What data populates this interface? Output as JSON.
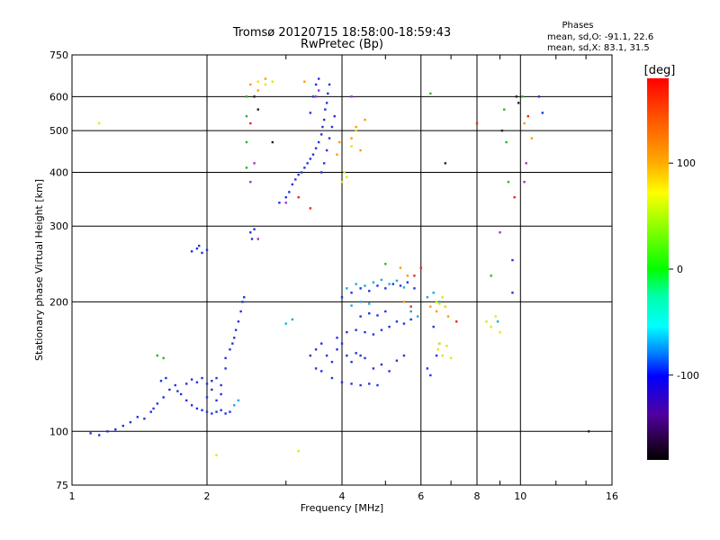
{
  "chart_data": {
    "type": "scatter",
    "title": "Tromsø 20120715 18:58:00-18:59:43",
    "subtitle": "RwPretec (Bp)",
    "xlabel": "Frequency [MHz]",
    "ylabel": "Stationary phase Virtual Height [km]",
    "xscale": "log",
    "yscale": "log",
    "xlim": [
      1,
      16
    ],
    "ylim": [
      75,
      750
    ],
    "xticks": [
      1,
      2,
      4,
      6,
      8,
      10,
      16
    ],
    "xtick_labels": [
      "1",
      "2",
      "4",
      "6",
      "8",
      "10",
      "16"
    ],
    "yticks": [
      75,
      100,
      200,
      300,
      400,
      500,
      600,
      750
    ],
    "ytick_labels": [
      "75",
      "100",
      "200",
      "300",
      "400",
      "500",
      "600",
      "750"
    ],
    "grid": true,
    "phases_box": {
      "heading": "Phases",
      "line1": "mean, sd,O: -91.1, 22.6",
      "line2": "mean, sd,X:  83.1, 31.5"
    },
    "colorbar": {
      "label": "[deg]",
      "ticks": [
        100,
        0,
        -100
      ],
      "tick_labels": [
        "100",
        "0",
        "-100"
      ],
      "range": [
        -180,
        180
      ]
    },
    "series": [
      {
        "color": "#2233dd",
        "points": [
          [
            1.1,
            99
          ],
          [
            1.15,
            98
          ],
          [
            1.2,
            100
          ],
          [
            1.25,
            101
          ],
          [
            1.3,
            103
          ],
          [
            1.35,
            105
          ],
          [
            1.4,
            108
          ],
          [
            1.45,
            107
          ],
          [
            1.5,
            111
          ],
          [
            1.52,
            113
          ],
          [
            1.55,
            116
          ],
          [
            1.6,
            120
          ],
          [
            1.58,
            131
          ],
          [
            1.62,
            133
          ],
          [
            1.65,
            125
          ],
          [
            1.7,
            128
          ],
          [
            1.72,
            124
          ],
          [
            1.75,
            122
          ],
          [
            1.8,
            118
          ],
          [
            1.85,
            115
          ],
          [
            1.9,
            113
          ],
          [
            1.95,
            112
          ],
          [
            2.0,
            111
          ],
          [
            2.05,
            110
          ],
          [
            2.1,
            111
          ],
          [
            2.15,
            112
          ],
          [
            2.2,
            110
          ],
          [
            2.25,
            111
          ],
          [
            1.8,
            129
          ],
          [
            1.85,
            132
          ],
          [
            1.9,
            130
          ],
          [
            1.95,
            133
          ],
          [
            2.0,
            129
          ],
          [
            2.05,
            131
          ],
          [
            2.1,
            133
          ],
          [
            2.15,
            128
          ],
          [
            2.0,
            120
          ],
          [
            2.05,
            125
          ],
          [
            2.1,
            118
          ],
          [
            2.15,
            122
          ],
          [
            2.2,
            140
          ],
          [
            2.2,
            148
          ],
          [
            2.25,
            155
          ],
          [
            2.28,
            160
          ],
          [
            2.3,
            165
          ],
          [
            2.32,
            172
          ],
          [
            2.35,
            180
          ],
          [
            2.38,
            190
          ],
          [
            2.4,
            200
          ],
          [
            2.42,
            205
          ],
          [
            1.85,
            262
          ],
          [
            1.9,
            266
          ],
          [
            1.95,
            260
          ],
          [
            2.0,
            264
          ],
          [
            1.92,
            270
          ],
          [
            2.5,
            290
          ],
          [
            2.52,
            280
          ],
          [
            2.55,
            295
          ],
          [
            2.9,
            340
          ],
          [
            3.0,
            350
          ],
          [
            3.05,
            360
          ],
          [
            3.1,
            375
          ],
          [
            3.15,
            385
          ],
          [
            3.2,
            395
          ],
          [
            3.25,
            400
          ],
          [
            3.3,
            410
          ],
          [
            3.35,
            420
          ],
          [
            3.4,
            430
          ],
          [
            3.45,
            440
          ],
          [
            3.5,
            455
          ],
          [
            3.55,
            470
          ],
          [
            3.6,
            490
          ],
          [
            3.62,
            510
          ],
          [
            3.65,
            530
          ],
          [
            3.67,
            560
          ],
          [
            3.7,
            580
          ],
          [
            3.72,
            610
          ],
          [
            3.75,
            640
          ],
          [
            3.6,
            400
          ],
          [
            3.65,
            420
          ],
          [
            3.7,
            450
          ],
          [
            3.75,
            480
          ],
          [
            3.8,
            510
          ],
          [
            3.85,
            540
          ],
          [
            3.4,
            550
          ],
          [
            3.45,
            600
          ],
          [
            3.5,
            640
          ],
          [
            3.55,
            660
          ],
          [
            3.4,
            150
          ],
          [
            3.5,
            155
          ],
          [
            3.6,
            160
          ],
          [
            3.7,
            150
          ],
          [
            3.8,
            145
          ],
          [
            3.9,
            155
          ],
          [
            4.0,
            160
          ],
          [
            4.1,
            150
          ],
          [
            4.2,
            145
          ],
          [
            4.3,
            152
          ],
          [
            4.4,
            150
          ],
          [
            4.5,
            148
          ],
          [
            3.5,
            140
          ],
          [
            3.6,
            138
          ],
          [
            3.8,
            133
          ],
          [
            4.0,
            130
          ],
          [
            4.2,
            129
          ],
          [
            4.4,
            128
          ],
          [
            4.6,
            129
          ],
          [
            4.8,
            128
          ],
          [
            3.9,
            165
          ],
          [
            4.1,
            170
          ],
          [
            4.3,
            172
          ],
          [
            4.5,
            170
          ],
          [
            4.7,
            168
          ],
          [
            4.9,
            172
          ],
          [
            5.1,
            175
          ],
          [
            5.3,
            180
          ],
          [
            5.5,
            178
          ],
          [
            5.7,
            182
          ],
          [
            4.4,
            185
          ],
          [
            4.6,
            188
          ],
          [
            4.8,
            186
          ],
          [
            5.0,
            190
          ],
          [
            4.0,
            205
          ],
          [
            4.2,
            210
          ],
          [
            4.4,
            215
          ],
          [
            4.6,
            212
          ],
          [
            4.8,
            218
          ],
          [
            5.0,
            215
          ],
          [
            5.2,
            220
          ],
          [
            5.4,
            218
          ],
          [
            5.6,
            222
          ],
          [
            5.8,
            215
          ],
          [
            4.7,
            140
          ],
          [
            4.9,
            143
          ],
          [
            5.1,
            138
          ],
          [
            5.3,
            146
          ],
          [
            5.5,
            150
          ],
          [
            6.5,
            150
          ],
          [
            6.6,
            160
          ],
          [
            6.4,
            175
          ],
          [
            6.2,
            140
          ],
          [
            6.3,
            135
          ],
          [
            9.6,
            250
          ],
          [
            9.6,
            210
          ],
          [
            11.0,
            600
          ],
          [
            11.2,
            550
          ]
        ]
      },
      {
        "color": "#1ea7d6",
        "points": [
          [
            4.1,
            215
          ],
          [
            4.3,
            220
          ],
          [
            4.5,
            218
          ],
          [
            4.7,
            222
          ],
          [
            4.9,
            225
          ],
          [
            5.1,
            220
          ],
          [
            5.3,
            224
          ],
          [
            5.5,
            216
          ],
          [
            4.2,
            196
          ],
          [
            4.4,
            200
          ],
          [
            4.6,
            198
          ],
          [
            6.2,
            205
          ],
          [
            6.4,
            210
          ],
          [
            6.6,
            200
          ],
          [
            6.8,
            195
          ],
          [
            2.3,
            115
          ],
          [
            2.35,
            118
          ],
          [
            3.0,
            178
          ],
          [
            3.1,
            182
          ],
          [
            5.7,
            190
          ],
          [
            5.9,
            185
          ],
          [
            8.9,
            180
          ]
        ]
      },
      {
        "color": "#22bb22",
        "points": [
          [
            2.45,
            600
          ],
          [
            2.45,
            540
          ],
          [
            2.45,
            470
          ],
          [
            2.45,
            410
          ],
          [
            6.3,
            610
          ],
          [
            9.2,
            560
          ],
          [
            9.3,
            470
          ],
          [
            9.4,
            380
          ],
          [
            8.6,
            230
          ],
          [
            1.55,
            150
          ],
          [
            1.6,
            148
          ],
          [
            5.0,
            245
          ],
          [
            10.1,
            600
          ]
        ]
      },
      {
        "color": "#e6e600",
        "points": [
          [
            6.5,
            200
          ],
          [
            6.6,
            198
          ],
          [
            6.7,
            205
          ],
          [
            6.8,
            195
          ],
          [
            6.55,
            155
          ],
          [
            6.7,
            150
          ],
          [
            6.85,
            158
          ],
          [
            7.0,
            148
          ],
          [
            6.6,
            160
          ],
          [
            4.0,
            380
          ],
          [
            4.05,
            400
          ],
          [
            4.1,
            390
          ],
          [
            4.2,
            460
          ],
          [
            4.3,
            500
          ],
          [
            8.4,
            180
          ],
          [
            8.6,
            175
          ],
          [
            8.8,
            185
          ],
          [
            9.0,
            170
          ],
          [
            2.6,
            650
          ],
          [
            2.7,
            640
          ],
          [
            2.8,
            650
          ],
          [
            1.15,
            520
          ],
          [
            2.1,
            88
          ],
          [
            3.2,
            90
          ]
        ]
      },
      {
        "color": "#ff9900",
        "points": [
          [
            4.2,
            480
          ],
          [
            4.3,
            510
          ],
          [
            4.4,
            450
          ],
          [
            4.5,
            530
          ],
          [
            3.9,
            440
          ],
          [
            3.95,
            470
          ],
          [
            6.3,
            195
          ],
          [
            6.5,
            190
          ],
          [
            6.9,
            185
          ],
          [
            5.4,
            240
          ],
          [
            5.6,
            230
          ],
          [
            2.5,
            640
          ],
          [
            2.6,
            620
          ],
          [
            2.7,
            660
          ],
          [
            3.3,
            650
          ],
          [
            5.5,
            200
          ],
          [
            10.2,
            520
          ],
          [
            10.6,
            480
          ]
        ]
      },
      {
        "color": "#ee2222",
        "points": [
          [
            5.7,
            195
          ],
          [
            5.8,
            230
          ],
          [
            6.0,
            240
          ],
          [
            2.5,
            520
          ],
          [
            3.2,
            350
          ],
          [
            3.4,
            330
          ],
          [
            7.2,
            180
          ],
          [
            8.0,
            520
          ],
          [
            10.4,
            540
          ],
          [
            9.7,
            350
          ]
        ]
      },
      {
        "color": "#9933cc",
        "points": [
          [
            3.5,
            600
          ],
          [
            3.55,
            620
          ],
          [
            3.0,
            340
          ],
          [
            2.5,
            380
          ],
          [
            2.55,
            420
          ],
          [
            9.0,
            290
          ],
          [
            10.2,
            380
          ],
          [
            10.3,
            420
          ],
          [
            2.6,
            280
          ],
          [
            4.2,
            600
          ]
        ]
      },
      {
        "color": "#222222",
        "points": [
          [
            2.55,
            600
          ],
          [
            2.6,
            560
          ],
          [
            2.8,
            470
          ],
          [
            9.8,
            600
          ],
          [
            9.9,
            580
          ],
          [
            6.8,
            420
          ],
          [
            9.1,
            500
          ],
          [
            14.2,
            100
          ]
        ]
      }
    ]
  }
}
